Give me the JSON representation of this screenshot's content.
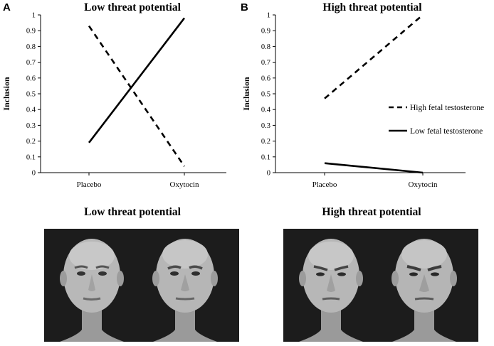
{
  "panels": {
    "a": {
      "letter": "A"
    },
    "b": {
      "letter": "B"
    }
  },
  "chart_data": [
    {
      "type": "line",
      "title": "Low threat potential",
      "xlabel": "",
      "ylabel": "Inclusion",
      "ylim": [
        0,
        1
      ],
      "y_ticks": [
        "0",
        "0.1",
        "0.2",
        "0.3",
        "0.4",
        "0.5",
        "0.6",
        "0.7",
        "0.8",
        "0.9",
        "1"
      ],
      "categories": [
        "Placebo",
        "Oxytocin"
      ],
      "legend": "none",
      "series": [
        {
          "name": "High fetal testosterone",
          "style": "dashed",
          "values": [
            0.93,
            0.04
          ]
        },
        {
          "name": "Low fetal testosterone",
          "style": "solid",
          "values": [
            0.19,
            0.98
          ]
        }
      ]
    },
    {
      "type": "line",
      "title": "High threat potential",
      "xlabel": "",
      "ylabel": "Inclusion",
      "ylim": [
        0,
        1
      ],
      "y_ticks": [
        "0",
        "0.1",
        "0.2",
        "0.3",
        "0.4",
        "0.5",
        "0.6",
        "0.7",
        "0.8",
        "0.9",
        "1"
      ],
      "categories": [
        "Placebo",
        "Oxytocin"
      ],
      "legend": "right",
      "series": [
        {
          "name": "High fetal testosterone",
          "style": "dashed",
          "values": [
            0.47,
            1.0
          ]
        },
        {
          "name": "Low fetal testosterone",
          "style": "solid",
          "values": [
            0.06,
            0.0
          ]
        }
      ]
    }
  ],
  "faces": {
    "low": {
      "title": "Low threat potential"
    },
    "high": {
      "title": "High threat potential"
    }
  }
}
